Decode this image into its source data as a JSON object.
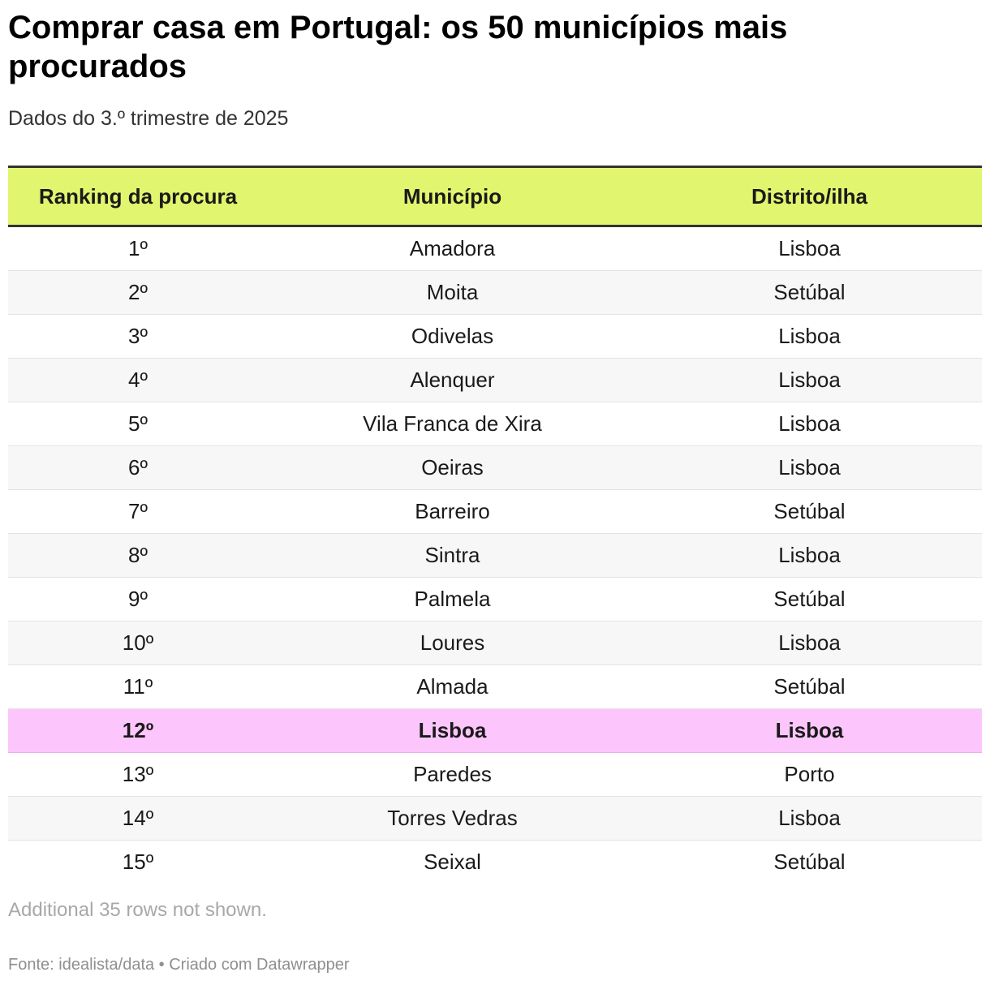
{
  "chart_data": {
    "type": "table",
    "title": "Comprar casa em Portugal: os 50 municípios mais procurados",
    "subtitle": "Dados do 3.º trimestre de 2025",
    "columns": [
      "Ranking da procura",
      "Município",
      "Distrito/ilha"
    ],
    "rows": [
      {
        "rank": "1º",
        "municipio": "Amadora",
        "distrito": "Lisboa",
        "highlight": false
      },
      {
        "rank": "2º",
        "municipio": "Moita",
        "distrito": "Setúbal",
        "highlight": false
      },
      {
        "rank": "3º",
        "municipio": "Odivelas",
        "distrito": "Lisboa",
        "highlight": false
      },
      {
        "rank": "4º",
        "municipio": "Alenquer",
        "distrito": "Lisboa",
        "highlight": false
      },
      {
        "rank": "5º",
        "municipio": "Vila Franca de Xira",
        "distrito": "Lisboa",
        "highlight": false
      },
      {
        "rank": "6º",
        "municipio": "Oeiras",
        "distrito": "Lisboa",
        "highlight": false
      },
      {
        "rank": "7º",
        "municipio": "Barreiro",
        "distrito": "Setúbal",
        "highlight": false
      },
      {
        "rank": "8º",
        "municipio": "Sintra",
        "distrito": "Lisboa",
        "highlight": false
      },
      {
        "rank": "9º",
        "municipio": "Palmela",
        "distrito": "Setúbal",
        "highlight": false
      },
      {
        "rank": "10º",
        "municipio": "Loures",
        "distrito": "Lisboa",
        "highlight": false
      },
      {
        "rank": "11º",
        "municipio": "Almada",
        "distrito": "Setúbal",
        "highlight": false
      },
      {
        "rank": "12º",
        "municipio": "Lisboa",
        "distrito": "Lisboa",
        "highlight": true
      },
      {
        "rank": "13º",
        "municipio": "Paredes",
        "distrito": "Porto",
        "highlight": false
      },
      {
        "rank": "14º",
        "municipio": "Torres Vedras",
        "distrito": "Lisboa",
        "highlight": false
      },
      {
        "rank": "15º",
        "municipio": "Seixal",
        "distrito": "Setúbal",
        "highlight": false
      }
    ],
    "note": "Additional 35 rows not shown.",
    "source": "Fonte: idealista/data • Criado com Datawrapper"
  },
  "colors": {
    "header_bg": "#e2f56e",
    "highlight_bg": "#fcc6fc",
    "alt_row_bg": "#f7f7f7"
  }
}
